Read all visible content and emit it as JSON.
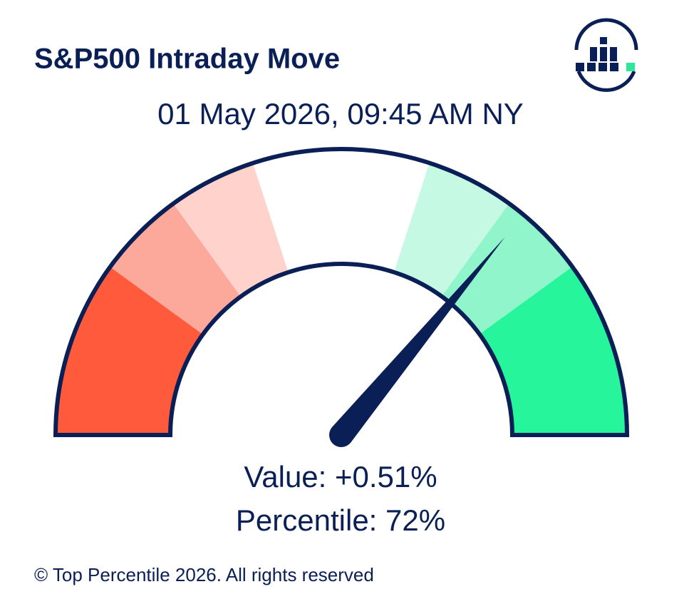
{
  "chart_data": {
    "type": "gauge",
    "title": "S&P500 Intraday Move",
    "subtitle": "01 May 2026, 09:45 AM NY",
    "range": [
      0,
      100
    ],
    "bands": [
      0,
      10,
      20,
      30,
      40,
      60,
      70,
      80,
      90,
      100
    ],
    "band_colors": [
      "#ff5a3c",
      "#ff5a3c",
      "#fca89a",
      "#ffd3cc",
      "#ffffff",
      "#c6f9e3",
      "#90f5cb",
      "#27f59c",
      "#27f59c"
    ],
    "value": 72,
    "value_label": "Percentile: 72%",
    "move_label": "Value: +0.51%",
    "needle_color": "#0a1f55",
    "outline_color": "#0a1f55"
  },
  "footer": "© Top Percentile 2026. All rights reserved"
}
